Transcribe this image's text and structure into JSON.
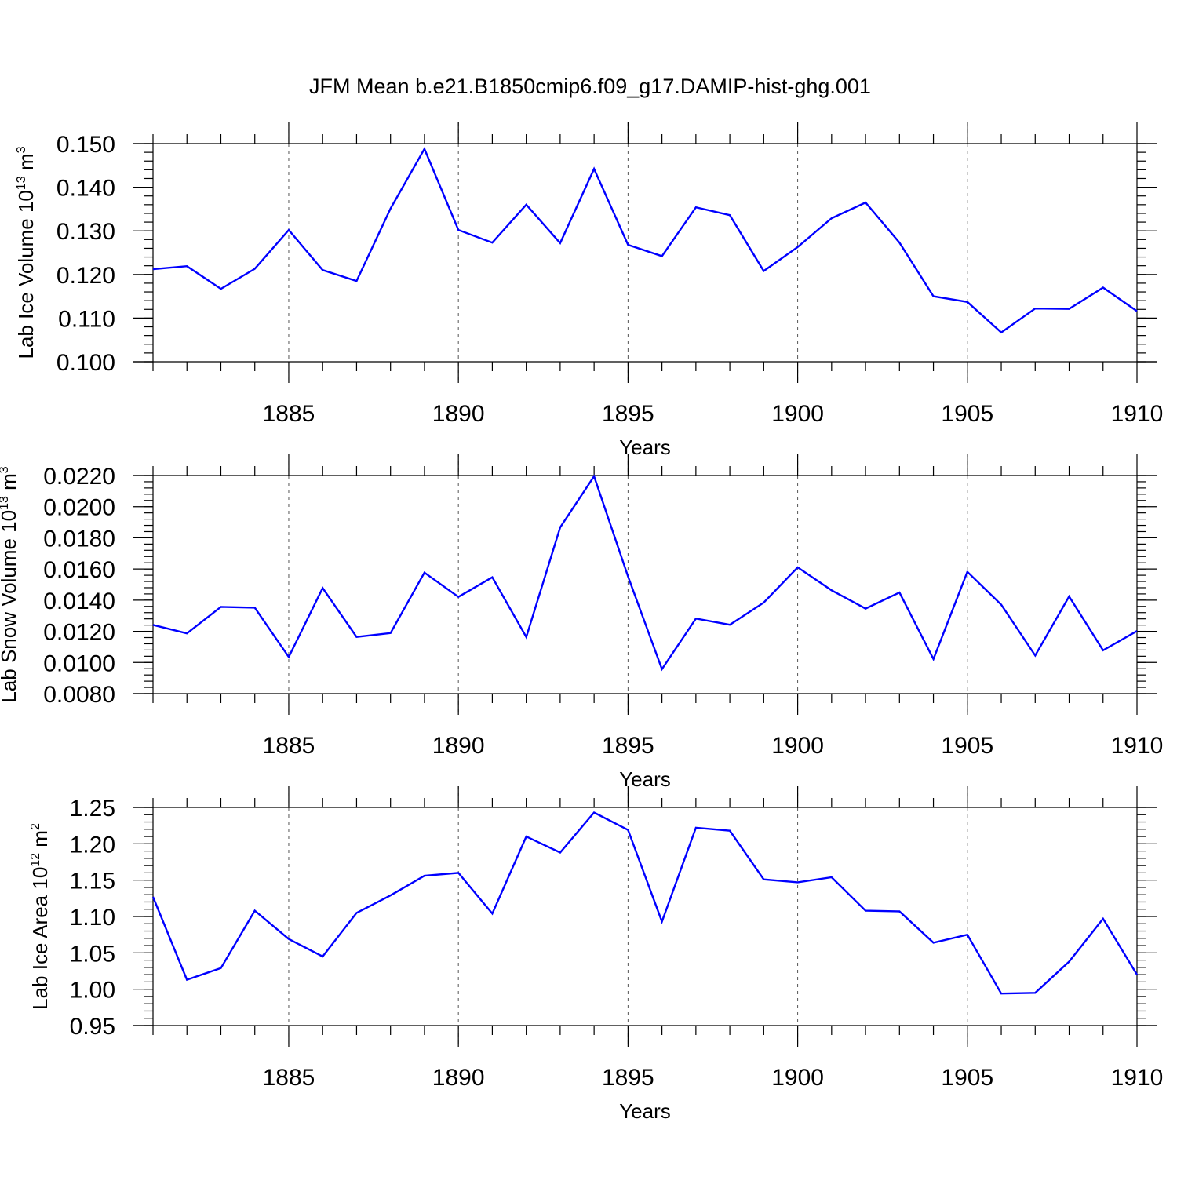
{
  "figure": {
    "title": "JFM Mean b.e21.B1850cmip6.f09_g17.DAMIP-hist-ghg.001",
    "line_color": "#0000ff"
  },
  "chart_data": [
    {
      "type": "line",
      "title": "",
      "xlabel": "Years",
      "ylabel": {
        "text": "Lab Ice Volume 10",
        "sup1": "13",
        "mid": " m",
        "sup2": "3"
      },
      "xlim": [
        1881,
        1910
      ],
      "ylim": [
        0.1,
        0.15
      ],
      "xticks": [
        1885,
        1890,
        1895,
        1900,
        1905,
        1910
      ],
      "yticks": [
        0.1,
        0.11,
        0.12,
        0.13,
        0.14,
        0.15
      ],
      "ytick_labels": [
        "0.100",
        "0.110",
        "0.120",
        "0.130",
        "0.140",
        "0.150"
      ],
      "y_minor_step": 0.002,
      "x": [
        1881,
        1882,
        1883,
        1884,
        1885,
        1886,
        1887,
        1888,
        1889,
        1890,
        1891,
        1892,
        1893,
        1894,
        1895,
        1896,
        1897,
        1898,
        1899,
        1900,
        1901,
        1902,
        1903,
        1904,
        1905,
        1906,
        1907,
        1908,
        1909,
        1910
      ],
      "y": [
        0.1212,
        0.1219,
        0.1167,
        0.1213,
        0.1302,
        0.121,
        0.1185,
        0.1351,
        0.1488,
        0.1302,
        0.1273,
        0.136,
        0.1272,
        0.1442,
        0.1268,
        0.1242,
        0.1354,
        0.1336,
        0.1208,
        0.1263,
        0.1329,
        0.1365,
        0.1273,
        0.115,
        0.1137,
        0.1067,
        0.1122,
        0.1121,
        0.117,
        0.1116
      ]
    },
    {
      "type": "line",
      "title": "",
      "xlabel": "Years",
      "ylabel": {
        "text": "Lab Snow Volume 10",
        "sup1": "13",
        "mid": " m",
        "sup2": "3"
      },
      "xlim": [
        1881,
        1910
      ],
      "ylim": [
        0.008,
        0.022
      ],
      "xticks": [
        1885,
        1890,
        1895,
        1900,
        1905,
        1910
      ],
      "yticks": [
        0.008,
        0.01,
        0.012,
        0.014,
        0.016,
        0.018,
        0.02,
        0.022
      ],
      "ytick_labels": [
        "0.0080",
        "0.0100",
        "0.0120",
        "0.0140",
        "0.0160",
        "0.0180",
        "0.0200",
        "0.0220"
      ],
      "y_minor_step": 0.0004,
      "x": [
        1881,
        1882,
        1883,
        1884,
        1885,
        1886,
        1887,
        1888,
        1889,
        1890,
        1891,
        1892,
        1893,
        1894,
        1895,
        1896,
        1897,
        1898,
        1899,
        1900,
        1901,
        1902,
        1903,
        1904,
        1905,
        1906,
        1907,
        1908,
        1909,
        1910
      ],
      "y": [
        0.01241,
        0.01187,
        0.01357,
        0.01352,
        0.01035,
        0.01478,
        0.01164,
        0.01189,
        0.01577,
        0.01421,
        0.01547,
        0.01163,
        0.01867,
        0.02195,
        0.01552,
        0.00957,
        0.01282,
        0.01242,
        0.01384,
        0.01611,
        0.01463,
        0.01346,
        0.01449,
        0.01022,
        0.01582,
        0.01371,
        0.01045,
        0.01424,
        0.01078,
        0.01202
      ]
    },
    {
      "type": "line",
      "title": "",
      "xlabel": "Years",
      "ylabel": {
        "text": "Lab Ice Area 10",
        "sup1": "12",
        "mid": " m",
        "sup2": "2"
      },
      "xlim": [
        1881,
        1910
      ],
      "ylim": [
        0.95,
        1.25
      ],
      "xticks": [
        1885,
        1890,
        1895,
        1900,
        1905,
        1910
      ],
      "yticks": [
        0.95,
        1.0,
        1.05,
        1.1,
        1.15,
        1.2,
        1.25
      ],
      "ytick_labels": [
        "0.95",
        "1.00",
        "1.05",
        "1.10",
        "1.15",
        "1.20",
        "1.25"
      ],
      "y_minor_step": 0.01,
      "x": [
        1881,
        1882,
        1883,
        1884,
        1885,
        1886,
        1887,
        1888,
        1889,
        1890,
        1891,
        1892,
        1893,
        1894,
        1895,
        1896,
        1897,
        1898,
        1899,
        1900,
        1901,
        1902,
        1903,
        1904,
        1905,
        1906,
        1907,
        1908,
        1909,
        1910
      ],
      "y": [
        1.127,
        1.013,
        1.029,
        1.108,
        1.069,
        1.045,
        1.105,
        1.129,
        1.156,
        1.16,
        1.104,
        1.21,
        1.188,
        1.243,
        1.219,
        1.093,
        1.222,
        1.218,
        1.151,
        1.147,
        1.154,
        1.108,
        1.107,
        1.064,
        1.075,
        0.994,
        0.995,
        1.038,
        1.097,
        1.02
      ]
    }
  ]
}
